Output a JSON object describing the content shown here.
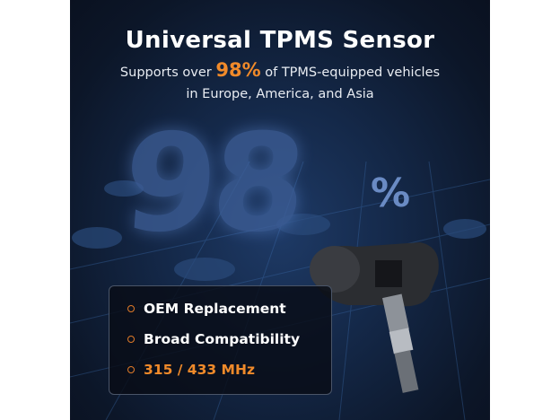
{
  "headline": "Universal TPMS Sensor",
  "subtitle": {
    "prefix": "Supports over ",
    "highlight": "98%",
    "suffix": " of TPMS-equipped vehicles",
    "line2": "in Europe, America, and Asia"
  },
  "big_number": "98",
  "big_percent": "%",
  "features": [
    "OEM Replacement",
    "Broad Compatibility",
    "315 / 433 MHz"
  ],
  "colors": {
    "accent": "#f08a2a",
    "background": "#0c1628"
  }
}
